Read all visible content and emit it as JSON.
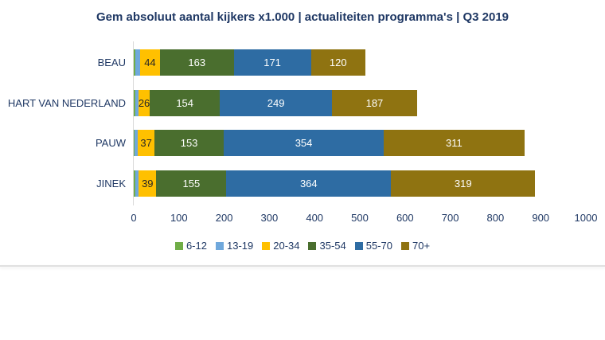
{
  "chart_data": {
    "type": "bar",
    "orientation": "horizontal-stacked",
    "title": "Gem absoluut aantal kijkers x1.000 | actualiteiten programma's | Q3 2019",
    "title_color": "#1F3864",
    "categories": [
      "BEAU",
      "HART VAN NEDERLAND",
      "PAUW",
      "JINEK"
    ],
    "series": [
      {
        "name": "6-12",
        "color": "#70AD47",
        "values": [
          4,
          3,
          2,
          3
        ],
        "labels_shown": false,
        "estimated": true
      },
      {
        "name": "13-19",
        "color": "#6FA8DC",
        "values": [
          10,
          7,
          7,
          8
        ],
        "labels_shown": false,
        "estimated": true
      },
      {
        "name": "20-34",
        "color": "#FFC000",
        "values": [
          44,
          26,
          37,
          39
        ],
        "labels_shown": true,
        "label_color": "#262626"
      },
      {
        "name": "35-54",
        "color": "#4A6E2E",
        "values": [
          163,
          154,
          153,
          155
        ],
        "labels_shown": true,
        "label_color": "#FFFFFF"
      },
      {
        "name": "55-70",
        "color": "#2E6CA3",
        "values": [
          171,
          249,
          354,
          364
        ],
        "labels_shown": true,
        "label_color": "#FFFFFF"
      },
      {
        "name": "70+",
        "color": "#8F7311",
        "values": [
          120,
          187,
          311,
          319
        ],
        "labels_shown": true,
        "label_color": "#FFFFFF"
      }
    ],
    "xlim": [
      0,
      1000
    ],
    "x_ticks": [
      0,
      100,
      200,
      300,
      400,
      500,
      600,
      700,
      800,
      900,
      1000
    ],
    "axis_text_color": "#1F3864",
    "grid": false,
    "legend_position": "bottom"
  }
}
